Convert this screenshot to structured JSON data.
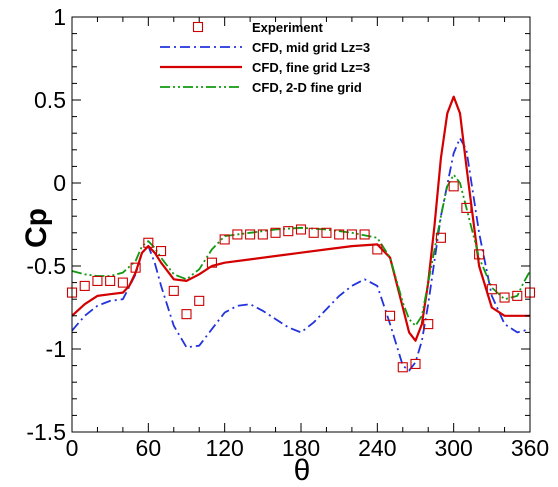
{
  "chart_data": {
    "type": "line",
    "xlabel": "θ",
    "ylabel": "Cp",
    "xlim": [
      0,
      360
    ],
    "ylim": [
      -1.5,
      1
    ],
    "xticks": [
      0,
      60,
      120,
      180,
      240,
      300,
      360
    ],
    "yticks": [
      -1.5,
      -1,
      -0.5,
      0,
      0.5,
      1
    ],
    "xtick_labels": [
      "0",
      "60",
      "120",
      "180",
      "240",
      "300",
      "360"
    ],
    "ytick_labels": [
      "-1.5",
      "-1",
      "-0.5",
      "0",
      "0.5",
      "1"
    ],
    "grid": false,
    "legend_position": "top-center",
    "series": [
      {
        "name": "Experiment",
        "style": "markers",
        "marker": "square",
        "color": "#cc0000",
        "x": [
          0,
          10,
          20,
          30,
          40,
          50,
          60,
          70,
          80,
          90,
          100,
          110,
          120,
          130,
          140,
          150,
          160,
          170,
          180,
          190,
          200,
          210,
          220,
          230,
          240,
          250,
          260,
          270,
          280,
          290,
          300,
          310,
          320,
          330,
          340,
          350,
          360
        ],
        "y": [
          -0.66,
          -0.62,
          -0.59,
          -0.59,
          -0.6,
          -0.51,
          -0.36,
          -0.41,
          -0.65,
          -0.79,
          -0.71,
          -0.48,
          -0.34,
          -0.31,
          -0.31,
          -0.31,
          -0.3,
          -0.29,
          -0.28,
          -0.3,
          -0.3,
          -0.31,
          -0.31,
          -0.31,
          -0.4,
          -0.8,
          -1.11,
          -1.09,
          -0.85,
          -0.33,
          -0.02,
          -0.15,
          -0.43,
          -0.64,
          -0.69,
          -0.68,
          -0.66
        ]
      },
      {
        "name": "CFD, mid grid Lz=3",
        "style": "dashdot",
        "color": "#2233dd",
        "x": [
          0,
          10,
          20,
          30,
          40,
          50,
          55,
          60,
          65,
          70,
          80,
          90,
          100,
          110,
          120,
          130,
          140,
          150,
          160,
          170,
          180,
          190,
          200,
          210,
          220,
          230,
          240,
          250,
          260,
          265,
          270,
          275,
          280,
          290,
          300,
          305,
          310,
          320,
          330,
          340,
          350,
          360
        ],
        "y": [
          -0.89,
          -0.8,
          -0.74,
          -0.71,
          -0.7,
          -0.55,
          -0.42,
          -0.38,
          -0.48,
          -0.62,
          -0.86,
          -0.99,
          -0.98,
          -0.88,
          -0.78,
          -0.74,
          -0.73,
          -0.77,
          -0.82,
          -0.87,
          -0.9,
          -0.84,
          -0.76,
          -0.68,
          -0.62,
          -0.58,
          -0.62,
          -0.85,
          -1.1,
          -1.13,
          -1.08,
          -0.95,
          -0.73,
          -0.2,
          0.18,
          0.27,
          0.2,
          -0.3,
          -0.68,
          -0.85,
          -0.9,
          -0.88
        ]
      },
      {
        "name": "CFD, fine grid Lz=3",
        "style": "solid",
        "color": "#d40000",
        "x": [
          0,
          10,
          20,
          30,
          40,
          45,
          50,
          55,
          60,
          65,
          70,
          80,
          90,
          100,
          110,
          120,
          140,
          160,
          180,
          200,
          220,
          240,
          250,
          260,
          265,
          270,
          275,
          280,
          285,
          290,
          295,
          300,
          305,
          310,
          320,
          330,
          340,
          350,
          360
        ],
        "y": [
          -0.8,
          -0.73,
          -0.68,
          -0.67,
          -0.66,
          -0.62,
          -0.54,
          -0.42,
          -0.38,
          -0.42,
          -0.48,
          -0.58,
          -0.59,
          -0.55,
          -0.5,
          -0.48,
          -0.46,
          -0.44,
          -0.42,
          -0.4,
          -0.38,
          -0.37,
          -0.45,
          -0.75,
          -0.9,
          -0.95,
          -0.85,
          -0.6,
          -0.25,
          0.15,
          0.42,
          0.52,
          0.42,
          0.1,
          -0.5,
          -0.75,
          -0.8,
          -0.8,
          -0.8
        ]
      },
      {
        "name": "CFD, 2-D fine grid",
        "style": "dashdotdot",
        "color": "#119911",
        "x": [
          0,
          10,
          20,
          30,
          40,
          50,
          55,
          60,
          65,
          70,
          80,
          90,
          100,
          110,
          120,
          140,
          160,
          180,
          200,
          220,
          240,
          250,
          260,
          265,
          270,
          275,
          280,
          290,
          295,
          300,
          305,
          310,
          320,
          330,
          340,
          350,
          355,
          360
        ],
        "y": [
          -0.53,
          -0.55,
          -0.56,
          -0.56,
          -0.54,
          -0.47,
          -0.38,
          -0.35,
          -0.39,
          -0.45,
          -0.55,
          -0.58,
          -0.52,
          -0.4,
          -0.32,
          -0.3,
          -0.28,
          -0.27,
          -0.28,
          -0.3,
          -0.33,
          -0.45,
          -0.72,
          -0.82,
          -0.86,
          -0.8,
          -0.6,
          -0.2,
          -0.02,
          0.05,
          0.0,
          -0.15,
          -0.45,
          -0.63,
          -0.7,
          -0.68,
          -0.6,
          -0.53
        ]
      }
    ]
  }
}
